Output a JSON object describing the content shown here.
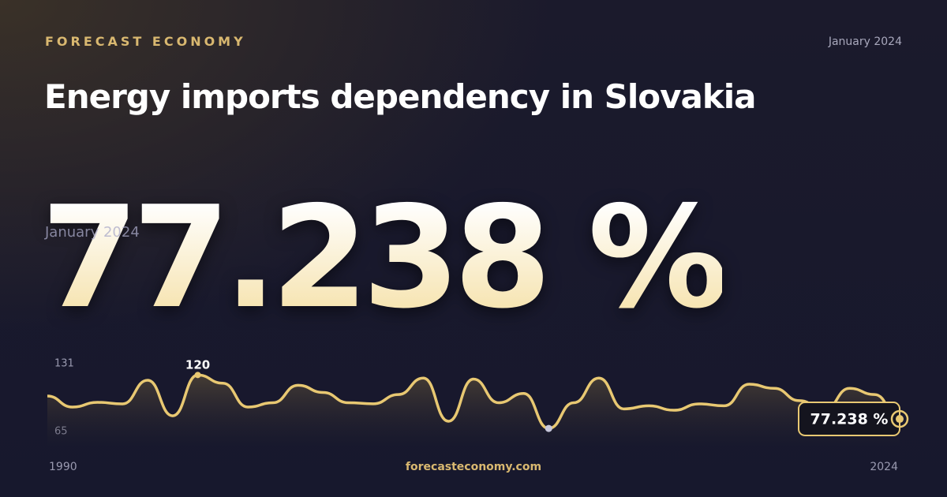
{
  "chart_data": {
    "type": "line",
    "brand": "FORECAST ECONOMY",
    "date": "January 2024",
    "title": "Energy imports dependency in Slovakia",
    "source": "forecasteconomy.com",
    "x": [
      1990,
      1991,
      1992,
      1993,
      1994,
      1995,
      1996,
      1997,
      1998,
      1999,
      2000,
      2001,
      2002,
      2003,
      2004,
      2005,
      2006,
      2007,
      2008,
      2009,
      2010,
      2011,
      2012,
      2013,
      2014,
      2015,
      2016,
      2017,
      2018,
      2019,
      2020,
      2021,
      2022,
      2023,
      2024
    ],
    "values": [
      99.5,
      88.8,
      93.4,
      91.9,
      114.9,
      80.3,
      120,
      112,
      88.8,
      93,
      110,
      103,
      93,
      92,
      101,
      117,
      75,
      116,
      93,
      102,
      68,
      93,
      117,
      87,
      90,
      85.7,
      91.9,
      90,
      111,
      107,
      95,
      86,
      107,
      101,
      77.238
    ],
    "value_labels": [
      null,
      null,
      null,
      null,
      null,
      null,
      null,
      null,
      null,
      null,
      null,
      null,
      null,
      null,
      null,
      null,
      null,
      null,
      null,
      null,
      null,
      null,
      null,
      null,
      null,
      null,
      null,
      null,
      null,
      null,
      null,
      null,
      null,
      null,
      "77.238 %"
    ],
    "color": "#e8c872",
    "xlim": [
      1990,
      2024
    ],
    "xticks": [
      1990,
      2024
    ],
    "ylim": [
      65,
      131
    ],
    "yticks": [
      65,
      131
    ],
    "grid": false
  }
}
